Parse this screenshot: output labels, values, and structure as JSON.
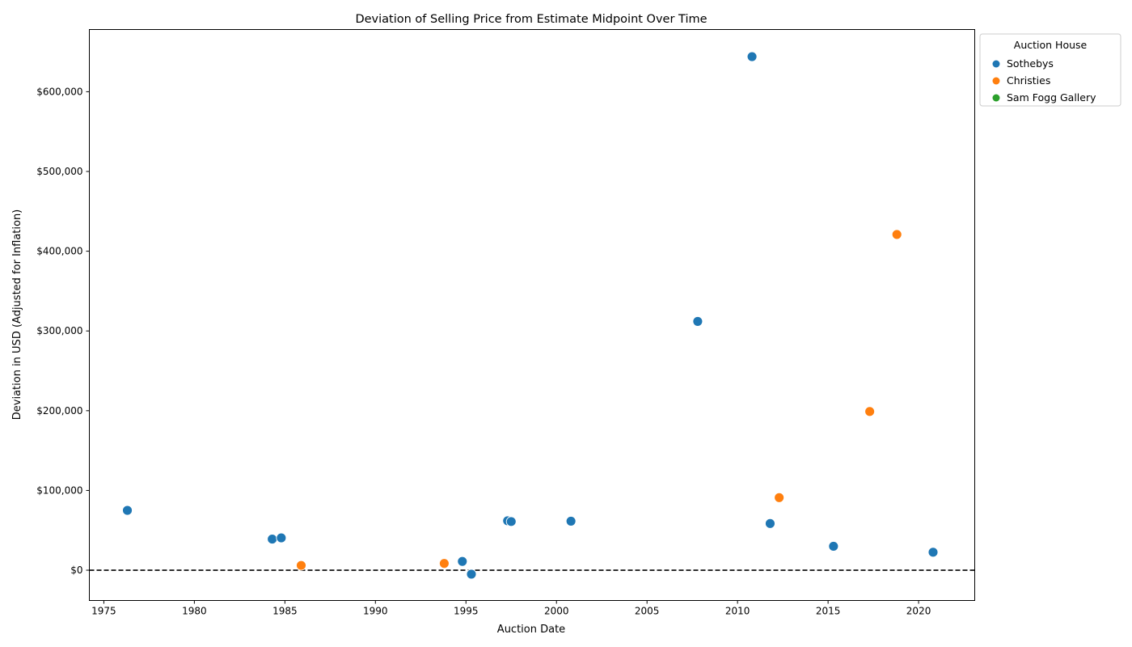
{
  "chart_data": {
    "type": "scatter",
    "title": "Deviation of Selling Price from Estimate Midpoint Over Time",
    "xlabel": "Auction Date",
    "ylabel": "Deviation in USD (Adjusted for Inflation)",
    "xlim": [
      1974.2,
      2023.1
    ],
    "ylim": [
      -38000,
      678000
    ],
    "x_ticks": [
      1975,
      1980,
      1985,
      1990,
      1995,
      2000,
      2005,
      2010,
      2015,
      2020
    ],
    "y_ticks": [
      0,
      100000,
      200000,
      300000,
      400000,
      500000,
      600000
    ],
    "y_tick_labels": [
      "$0",
      "$100,000",
      "$200,000",
      "$300,000",
      "$400,000",
      "$500,000",
      "$600,000"
    ],
    "reference_line": {
      "y": 0,
      "style": "dashed",
      "color": "#000000"
    },
    "grid": false,
    "legend": {
      "title": "Auction House",
      "placement": "outside-top-right"
    },
    "series": [
      {
        "name": "Sothebys",
        "color": "#1f77b4",
        "points": [
          {
            "x": 1976.3,
            "y": 75000
          },
          {
            "x": 1984.3,
            "y": 39000
          },
          {
            "x": 1984.8,
            "y": 40500
          },
          {
            "x": 1994.8,
            "y": 11000
          },
          {
            "x": 1995.3,
            "y": -5000
          },
          {
            "x": 1997.3,
            "y": 62000
          },
          {
            "x": 1997.5,
            "y": 61000
          },
          {
            "x": 2000.8,
            "y": 61500
          },
          {
            "x": 2007.8,
            "y": 312000
          },
          {
            "x": 2010.8,
            "y": 644000
          },
          {
            "x": 2011.8,
            "y": 58500
          },
          {
            "x": 2015.3,
            "y": 30000
          },
          {
            "x": 2020.8,
            "y": 22500
          }
        ]
      },
      {
        "name": "Christies",
        "color": "#ff7f0e",
        "points": [
          {
            "x": 1985.9,
            "y": 6000
          },
          {
            "x": 1993.8,
            "y": 8500
          },
          {
            "x": 2012.3,
            "y": 91000
          },
          {
            "x": 2017.3,
            "y": 199000
          },
          {
            "x": 2018.8,
            "y": 421000
          }
        ]
      },
      {
        "name": "Sam Fogg Gallery",
        "color": "#2ca02c",
        "points": []
      }
    ]
  }
}
